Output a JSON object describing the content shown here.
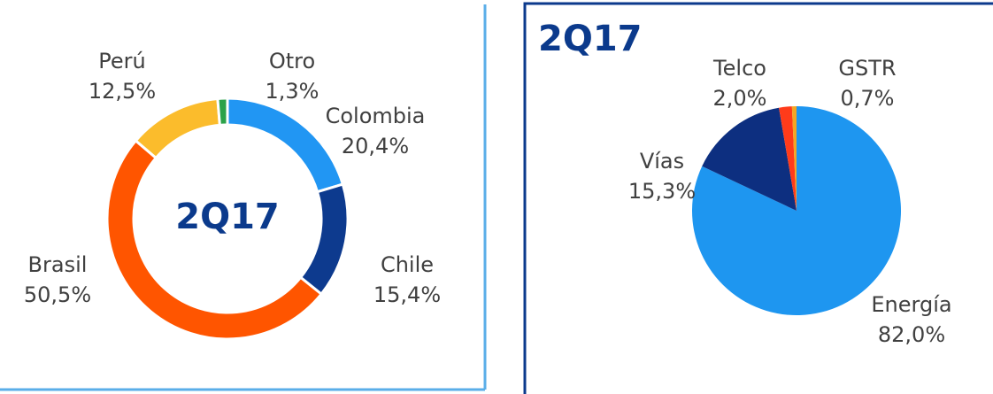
{
  "chart_data": [
    {
      "type": "donut",
      "title": "2Q17",
      "categories": [
        "Colombia",
        "Chile",
        "Brasil",
        "Perú",
        "Otro"
      ],
      "values": [
        20.4,
        15.4,
        50.5,
        12.5,
        1.3
      ],
      "value_labels": [
        "20,4%",
        "15,4%",
        "50,5%",
        "12,5%",
        "1,3%"
      ],
      "colors": [
        "#2196f3",
        "#0d3a8e",
        "#ff5500",
        "#fbbc2c",
        "#2ca24a"
      ]
    },
    {
      "type": "pie",
      "title": "2Q17",
      "categories": [
        "Energía",
        "Vías",
        "Telco",
        "GSTR"
      ],
      "values": [
        82.0,
        15.3,
        2.0,
        0.7
      ],
      "value_labels": [
        "82,0%",
        "15,3%",
        "2,0%",
        "0,7%"
      ],
      "colors": [
        "#1e96f0",
        "#0d2f80",
        "#ff3b1a",
        "#f5a623"
      ]
    }
  ]
}
